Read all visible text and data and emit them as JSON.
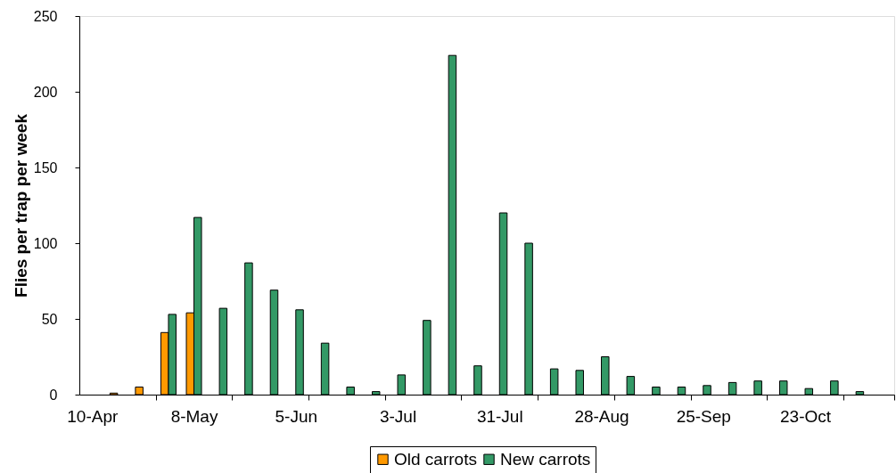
{
  "chart_data": {
    "type": "bar",
    "ylabel": "Flies per trap per week",
    "categories": [
      "10-Apr",
      null,
      null,
      null,
      "8-May",
      null,
      null,
      null,
      "5-Jun",
      null,
      null,
      null,
      "3-Jul",
      null,
      null,
      null,
      "31-Jul",
      null,
      null,
      null,
      "28-Aug",
      null,
      null,
      null,
      "25-Sep",
      null,
      null,
      null,
      "23-Oct",
      null,
      null,
      null
    ],
    "series": [
      {
        "name": "Old carrots",
        "color": "#ff9900",
        "values": [
          null,
          1,
          5,
          41,
          54,
          null,
          null,
          null,
          null,
          null,
          null,
          null,
          null,
          null,
          null,
          null,
          null,
          null,
          null,
          null,
          null,
          null,
          null,
          null,
          null,
          null,
          null,
          null,
          null,
          null,
          null,
          null
        ]
      },
      {
        "name": "New carrots",
        "color": "#339966",
        "values": [
          null,
          null,
          null,
          53,
          117,
          57,
          87,
          69,
          56,
          34,
          5,
          2,
          13,
          49,
          224,
          19,
          120,
          100,
          17,
          16,
          25,
          12,
          5,
          5,
          6,
          8,
          9,
          9,
          4,
          9,
          2,
          null
        ]
      }
    ],
    "ylim": [
      0,
      250
    ],
    "yticks": [
      0,
      50,
      100,
      150,
      200,
      250
    ],
    "legend": "bottom"
  }
}
